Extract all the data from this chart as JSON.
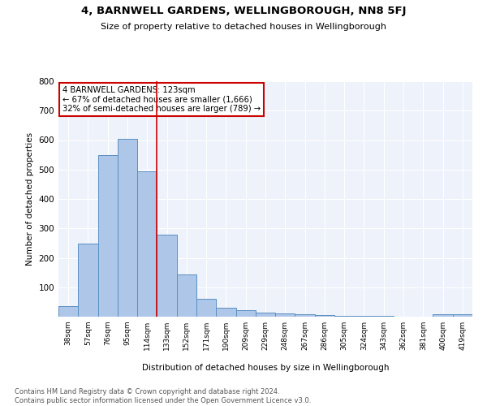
{
  "title": "4, BARNWELL GARDENS, WELLINGBOROUGH, NN8 5FJ",
  "subtitle": "Size of property relative to detached houses in Wellingborough",
  "xlabel": "Distribution of detached houses by size in Wellingborough",
  "ylabel": "Number of detached properties",
  "categories": [
    "38sqm",
    "57sqm",
    "76sqm",
    "95sqm",
    "114sqm",
    "133sqm",
    "152sqm",
    "171sqm",
    "190sqm",
    "209sqm",
    "229sqm",
    "248sqm",
    "267sqm",
    "286sqm",
    "305sqm",
    "324sqm",
    "343sqm",
    "362sqm",
    "381sqm",
    "400sqm",
    "419sqm"
  ],
  "values": [
    35,
    248,
    548,
    605,
    493,
    280,
    143,
    62,
    30,
    22,
    15,
    12,
    8,
    5,
    3,
    4,
    2,
    1,
    1,
    8,
    7
  ],
  "bar_color": "#aec6e8",
  "bar_edge_color": "#5a8fc2",
  "vline_x": 4.5,
  "vline_color": "#cc0000",
  "annotation_text": "4 BARNWELL GARDENS: 123sqm\n← 67% of detached houses are smaller (1,666)\n32% of semi-detached houses are larger (789) →",
  "annotation_box_color": "#ffffff",
  "annotation_box_edge": "#cc0000",
  "bg_color": "#eef2fa",
  "footer_text": "Contains HM Land Registry data © Crown copyright and database right 2024.\nContains public sector information licensed under the Open Government Licence v3.0.",
  "ylim": [
    0,
    800
  ],
  "yticks": [
    0,
    100,
    200,
    300,
    400,
    500,
    600,
    700,
    800
  ]
}
